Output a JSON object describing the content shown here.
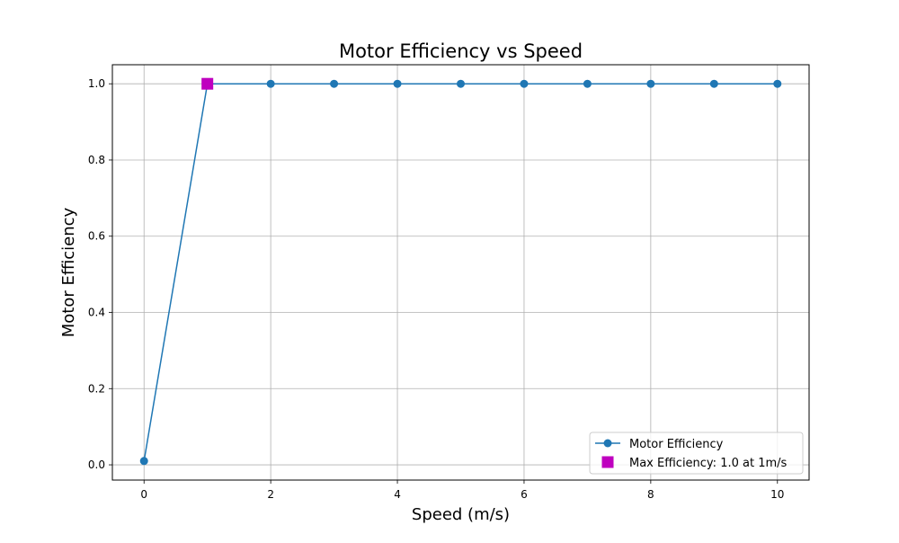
{
  "chart_data": {
    "type": "line",
    "title": "Motor Efficiency vs Speed",
    "xlabel": "Speed (m/s)",
    "ylabel": "Motor Efficiency",
    "xlim": [
      -0.5,
      10.5
    ],
    "ylim": [
      -0.04,
      1.05
    ],
    "xticks": [
      0,
      2,
      4,
      6,
      8,
      10
    ],
    "yticks": [
      0.0,
      0.2,
      0.4,
      0.6,
      0.8,
      1.0
    ],
    "xtick_labels": [
      "0",
      "2",
      "4",
      "6",
      "8",
      "10"
    ],
    "ytick_labels": [
      "0.0",
      "0.2",
      "0.4",
      "0.6",
      "0.8",
      "1.0"
    ],
    "grid": true,
    "legend_position": "bottom-right",
    "series": [
      {
        "name": "Motor Efficiency",
        "color": "#1f77b4",
        "marker": "circle",
        "x": [
          0,
          1,
          2,
          3,
          4,
          5,
          6,
          7,
          8,
          9,
          10
        ],
        "y": [
          0.01,
          1.0,
          1.0,
          1.0,
          1.0,
          1.0,
          1.0,
          1.0,
          1.0,
          1.0,
          1.0
        ]
      }
    ],
    "highlight": {
      "name": "Max Efficiency: 1.0 at 1m/s",
      "color": "#bf00bf",
      "marker": "square",
      "x": 1,
      "y": 1.0
    }
  }
}
